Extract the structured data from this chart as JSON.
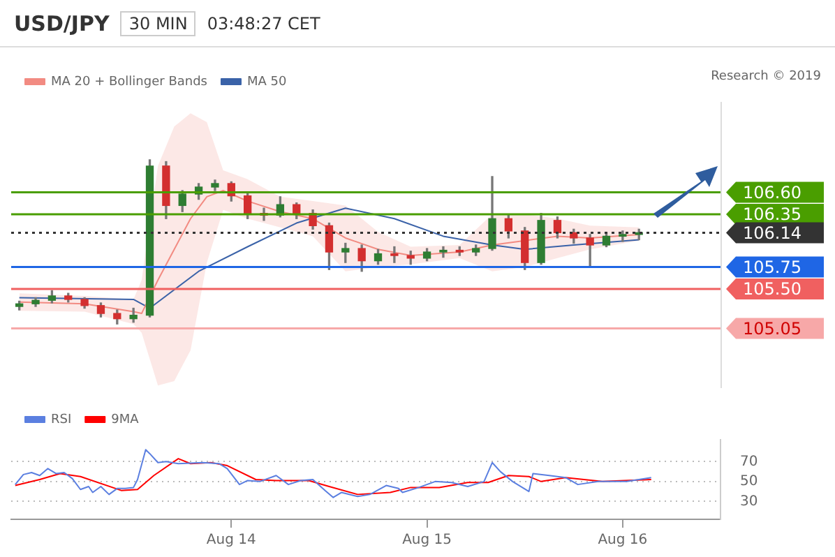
{
  "chart_data": [
    {
      "type": "candlestick",
      "title": "USD/JPY",
      "annotations": [
        "30 MIN",
        "03:48:27 CET",
        "Research © 2019"
      ],
      "x": [
        "--08-12T22:00",
        "--08-13T00:00",
        "--08-13T02:00",
        "--08-13T04:00",
        "--08-13T06:00",
        "--08-13T08:00",
        "--08-13T10:00",
        "--08-13T12:00",
        "--08-13T14:00",
        "--08-13T16:00",
        "--08-13T18:00",
        "--08-13T20:00",
        "--08-13T22:00",
        "--08-14T00:00",
        "--08-14T02:00",
        "--08-14T04:00",
        "--08-14T06:00",
        "--08-14T08:00",
        "--08-14T10:00",
        "--08-14T12:00",
        "--08-14T14:00",
        "--08-14T16:00",
        "--08-14T18:00",
        "--08-14T20:00",
        "--08-14T22:00",
        "--08-15T00:00",
        "--08-15T02:00",
        "--08-15T04:00",
        "--08-15T06:00",
        "--08-15T08:00",
        "--08-15T10:00",
        "--08-15T12:00",
        "--08-15T14:00",
        "--08-15T16:00",
        "--08-15T18:00",
        "--08-15T20:00",
        "--08-15T22:00",
        "--08-16T00:00",
        "--08-16T02:00"
      ],
      "ohlc": [
        [
          105.3,
          105.36,
          105.26,
          105.33
        ],
        [
          105.33,
          105.4,
          105.3,
          105.37
        ],
        [
          105.37,
          105.48,
          105.34,
          105.42
        ],
        [
          105.42,
          105.45,
          105.35,
          105.38
        ],
        [
          105.38,
          105.4,
          105.28,
          105.31
        ],
        [
          105.31,
          105.34,
          105.18,
          105.22
        ],
        [
          105.22,
          105.26,
          105.1,
          105.16
        ],
        [
          105.16,
          105.28,
          105.12,
          105.2
        ],
        [
          105.2,
          106.97,
          105.18,
          106.9
        ],
        [
          106.9,
          106.95,
          106.3,
          106.45
        ],
        [
          106.45,
          106.62,
          106.38,
          106.58
        ],
        [
          106.58,
          106.7,
          106.52,
          106.66
        ],
        [
          106.66,
          106.74,
          106.62,
          106.7
        ],
        [
          106.7,
          106.72,
          106.5,
          106.56
        ],
        [
          106.56,
          106.6,
          106.3,
          106.36
        ],
        [
          106.36,
          106.42,
          106.28,
          106.34
        ],
        [
          106.34,
          106.55,
          106.32,
          106.46
        ],
        [
          106.46,
          106.48,
          106.3,
          106.36
        ],
        [
          106.36,
          106.4,
          106.18,
          106.22
        ],
        [
          106.22,
          106.25,
          105.72,
          105.92
        ],
        [
          105.92,
          106.02,
          105.8,
          105.96
        ],
        [
          105.96,
          106.0,
          105.7,
          105.82
        ],
        [
          105.82,
          105.95,
          105.78,
          105.9
        ],
        [
          105.9,
          105.98,
          105.8,
          105.88
        ],
        [
          105.88,
          105.93,
          105.78,
          105.85
        ],
        [
          105.85,
          105.96,
          105.82,
          105.92
        ],
        [
          105.92,
          105.98,
          105.86,
          105.94
        ],
        [
          105.94,
          105.98,
          105.88,
          105.92
        ],
        [
          105.92,
          106.0,
          105.88,
          105.96
        ],
        [
          105.96,
          106.78,
          105.94,
          106.3
        ],
        [
          106.3,
          106.34,
          106.08,
          106.16
        ],
        [
          106.16,
          106.2,
          105.72,
          105.8
        ],
        [
          105.8,
          106.36,
          105.78,
          106.28
        ],
        [
          106.28,
          106.32,
          106.08,
          106.14
        ],
        [
          106.14,
          106.18,
          106.02,
          106.08
        ],
        [
          106.08,
          106.12,
          105.75,
          106.0
        ],
        [
          106.0,
          106.14,
          105.98,
          106.1
        ],
        [
          106.1,
          106.16,
          106.04,
          106.12
        ],
        [
          106.12,
          106.18,
          106.06,
          106.14
        ]
      ],
      "series": [
        {
          "name": "MA 20 + Bollinger Bands",
          "type": "line",
          "color": "#f28b82",
          "x": [
            "--08-12T22:00",
            "--08-13T06:00",
            "--08-13T12:00",
            "--08-13T13:00",
            "--08-13T15:00",
            "--08-13T17:00",
            "--08-13T19:00",
            "--08-13T21:00",
            "--08-13T23:00",
            "--08-14T02:00",
            "--08-14T06:00",
            "--08-14T10:00",
            "--08-14T14:00",
            "--08-14T18:00",
            "--08-14T22:00",
            "--08-15T04:00",
            "--08-15T08:00",
            "--08-15T12:00",
            "--08-15T16:00",
            "--08-15T20:00",
            "--08-16T02:00"
          ],
          "values": [
            105.35,
            105.33,
            105.24,
            105.22,
            105.6,
            105.95,
            106.3,
            106.55,
            106.62,
            106.5,
            106.38,
            106.3,
            106.08,
            105.95,
            105.88,
            105.92,
            106.0,
            106.05,
            106.1,
            106.08,
            106.12
          ],
          "lower": [
            105.25,
            105.24,
            105.1,
            105.0,
            104.4,
            104.45,
            104.8,
            105.8,
            106.4,
            106.3,
            106.2,
            106.1,
            105.7,
            105.75,
            105.78,
            105.85,
            105.7,
            105.75,
            105.85,
            105.95,
            106.05
          ],
          "upper": [
            105.45,
            105.42,
            105.38,
            105.6,
            106.9,
            107.35,
            107.5,
            107.4,
            106.85,
            106.75,
            106.55,
            106.5,
            106.45,
            106.15,
            105.98,
            106.0,
            106.35,
            106.35,
            106.3,
            106.22,
            106.2
          ]
        },
        {
          "name": "MA 50",
          "type": "line",
          "color": "#3a62a8",
          "x": [
            "--08-12T22:00",
            "--08-13T12:00",
            "--08-13T14:00",
            "--08-13T20:00",
            "--08-14T02:00",
            "--08-14T08:00",
            "--08-14T14:00",
            "--08-14T20:00",
            "--08-15T02:00",
            "--08-15T08:00",
            "--08-15T12:00",
            "--08-15T18:00",
            "--08-16T02:00"
          ],
          "values": [
            105.4,
            105.38,
            105.28,
            105.7,
            105.98,
            106.25,
            106.42,
            106.3,
            106.1,
            106.0,
            105.95,
            106.0,
            106.06
          ]
        }
      ],
      "ref_lines": [
        {
          "axis": "y",
          "value": 106.6,
          "color": "#4a9e00",
          "line_style": "solid"
        },
        {
          "axis": "y",
          "value": 106.35,
          "color": "#4a9e00",
          "line_style": "solid"
        },
        {
          "axis": "y",
          "value": 106.14,
          "color": "#333333",
          "line_style": "dotted"
        },
        {
          "axis": "y",
          "value": 105.75,
          "color": "#1f66e5",
          "line_style": "solid"
        },
        {
          "axis": "y",
          "value": 105.5,
          "color": "#f06060",
          "line_style": "solid"
        },
        {
          "axis": "y",
          "value": 105.05,
          "color": "#f7a8a8",
          "line_style": "solid"
        }
      ],
      "yticks": [
        {
          "value": 106.6,
          "label": "106.60"
        },
        {
          "value": 106.35,
          "label": "106.35"
        },
        {
          "value": 106.14,
          "label": "106.14"
        },
        {
          "value": 105.75,
          "label": "105.75"
        },
        {
          "value": 105.5,
          "label": "105.50"
        },
        {
          "value": 105.05,
          "label": "105.05"
        }
      ],
      "xlim": [
        "--08-12T21:00",
        "--08-16T12:00"
      ],
      "ylim": [
        104.37,
        107.63
      ],
      "tick_labels": "y",
      "legend": "top left"
    },
    {
      "type": "line",
      "legend": "top left",
      "grid": "y",
      "xlim": [
        "--08-12T21:00",
        "--08-16T12:00"
      ],
      "xticks": [
        {
          "value": "--08-14",
          "label": "Aug 14"
        },
        {
          "value": "--08-15",
          "label": "Aug 15"
        },
        {
          "value": "--08-16",
          "label": "Aug 16"
        }
      ],
      "ylim": [
        12,
        92
      ],
      "yticks": [
        30,
        50,
        70
      ],
      "series": [
        {
          "name": "RSI",
          "color": "#5b7fe0",
          "x": [
            "--08-12T21:30",
            "--08-12T22:30",
            "--08-12T23:30",
            "--08-13T00:30",
            "--08-13T01:30",
            "--08-13T02:30",
            "--08-13T03:30",
            "--08-13T04:30",
            "--08-13T05:30",
            "--08-13T06:30",
            "--08-13T07:00",
            "--08-13T08:00",
            "--08-13T09:00",
            "--08-13T10:00",
            "--08-13T11:00",
            "--08-13T12:00",
            "--08-13T12:30",
            "--08-13T13:30",
            "--08-13T14:00",
            "--08-13T15:00",
            "--08-13T16:00",
            "--08-13T17:30",
            "--08-13T20:30",
            "--08-13T22:30",
            "--08-13T23:30",
            "--08-14T01:00",
            "--08-14T02:00",
            "--08-14T03:30",
            "--08-14T05:30",
            "--08-14T07:00",
            "--08-14T08:30",
            "--08-14T10:00",
            "--08-14T11:30",
            "--08-14T12:30",
            "--08-14T13:30",
            "--08-14T15:30",
            "--08-14T17:00",
            "--08-14T19:00",
            "--08-14T20:30",
            "--08-14T21:00",
            "--08-14T23:00",
            "--08-15T01:00",
            "--08-15T03:00",
            "--08-15T05:00",
            "--08-15T07:00",
            "--08-15T08:00",
            "--08-15T09:00",
            "--08-15T10:30",
            "--08-15T12:30",
            "--08-15T13:00",
            "--08-15T15:00",
            "--08-15T17:00",
            "--08-15T18:30",
            "--08-15T21:00",
            "--08-15T22:30",
            "--08-16T00:30",
            "--08-16T03:30"
          ],
          "values": [
            47,
            57,
            59,
            56,
            63,
            58,
            59,
            53,
            42,
            45,
            39,
            45,
            37,
            43,
            43,
            44,
            52,
            82,
            78,
            69,
            70,
            68,
            69,
            68,
            63,
            47,
            51,
            50,
            56,
            47,
            51,
            52,
            41,
            34,
            39,
            35,
            37,
            46,
            43,
            39,
            44,
            50,
            49,
            45,
            50,
            69,
            60,
            50,
            40,
            58,
            56,
            54,
            47,
            50,
            50,
            50,
            54
          ]
        },
        {
          "name": "9MA",
          "color": "#ff0000",
          "x": [
            "--08-12T21:30",
            "--08-13T00:30",
            "--08-13T03:00",
            "--08-13T05:30",
            "--08-13T10:30",
            "--08-13T12:30",
            "--08-13T14:30",
            "--08-13T17:30",
            "--08-13T19:00",
            "--08-13T21:30",
            "--08-13T23:30",
            "--08-14T03:00",
            "--08-14T05:30",
            "--08-14T09:30",
            "--08-14T12:00",
            "--08-14T15:30",
            "--08-14T19:30",
            "--08-14T22:00",
            "--08-15T01:30",
            "--08-15T05:00",
            "--08-15T07:30",
            "--08-15T10:00",
            "--08-15T12:30",
            "--08-15T14:00",
            "--08-15T17:00",
            "--08-15T21:30",
            "--08-16T03:30"
          ],
          "values": [
            46,
            52,
            58,
            55,
            41,
            42,
            56,
            73,
            68,
            69,
            66,
            52,
            51,
            51,
            45,
            37,
            39,
            44,
            44,
            49,
            49,
            56,
            55,
            50,
            54,
            50,
            52
          ]
        }
      ]
    }
  ]
}
